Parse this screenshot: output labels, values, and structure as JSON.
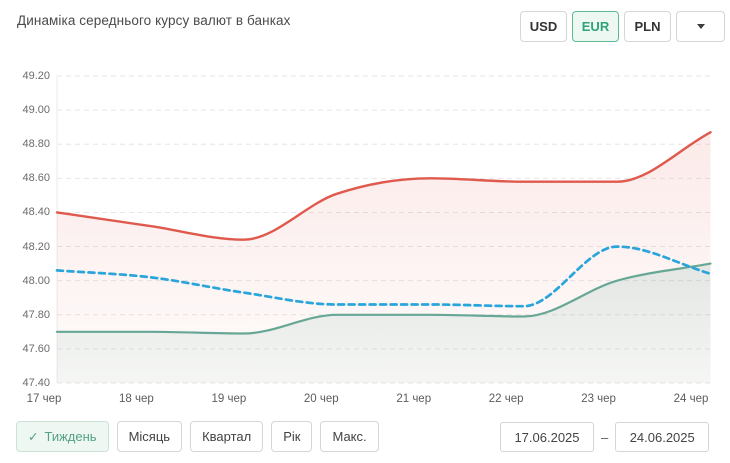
{
  "title": "Динаміка середнього курсу валют в банках",
  "currency_tabs": [
    {
      "label": "USD",
      "selected": false
    },
    {
      "label": "EUR",
      "selected": true
    },
    {
      "label": "PLN",
      "selected": false
    }
  ],
  "dropdown_icon": "caret-down",
  "chart_data": {
    "type": "line",
    "title": "Динаміка середнього курсу валют в банках",
    "categories": [
      "17 чер",
      "18 чер",
      "19 чер",
      "20 чер",
      "21 чер",
      "22 чер",
      "23 чер",
      "24 чер"
    ],
    "y_ticks": [
      "49.20",
      "49.00",
      "48.80",
      "48.60",
      "48.40",
      "48.20",
      "48.00",
      "47.80",
      "47.60",
      "47.40"
    ],
    "ylim": [
      47.4,
      49.2
    ],
    "grid": "horizontal-dashed",
    "legend": "none",
    "series": [
      {
        "id": "series-red",
        "color": "#df594d",
        "style": "solid",
        "area_fill": true,
        "values": [
          48.4,
          48.32,
          48.24,
          48.51,
          48.6,
          48.58,
          48.58,
          48.87
        ]
      },
      {
        "id": "series-blue-dashed",
        "color": "#29a5db",
        "style": "dashed",
        "area_fill": false,
        "values": [
          48.06,
          48.02,
          47.93,
          47.86,
          47.86,
          47.85,
          48.2,
          48.04
        ]
      },
      {
        "id": "series-green",
        "color": "#67a795",
        "style": "solid",
        "area_fill": true,
        "values": [
          47.7,
          47.7,
          47.69,
          47.8,
          47.8,
          47.79,
          48.0,
          48.1
        ]
      }
    ]
  },
  "range_buttons": [
    {
      "label": "Тиждень",
      "selected": true,
      "icon": "check"
    },
    {
      "label": "Місяць",
      "selected": false
    },
    {
      "label": "Квартал",
      "selected": false
    },
    {
      "label": "Рік",
      "selected": false
    },
    {
      "label": "Макс.",
      "selected": false
    }
  ],
  "date_range": {
    "from": "17.06.2025",
    "separator": "–",
    "to": "24.06.2025"
  }
}
